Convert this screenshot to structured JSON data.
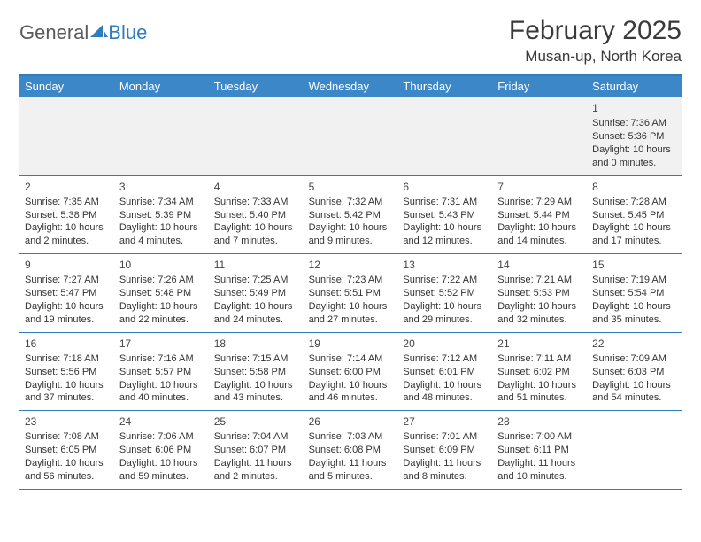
{
  "logo": {
    "text1": "General",
    "text2": "Blue"
  },
  "title": "February 2025",
  "location": "Musan-up, North Korea",
  "theme": {
    "header_bg": "#3b87c8",
    "header_text": "#ffffff",
    "border_color": "#2f7dc0",
    "first_row_bg": "#f1f1f1",
    "page_bg": "#ffffff",
    "text_color": "#333333",
    "title_fontsize": 30,
    "location_fontsize": 17,
    "dayheader_fontsize": 13,
    "cell_fontsize": 11
  },
  "daynames": [
    "Sunday",
    "Monday",
    "Tuesday",
    "Wednesday",
    "Thursday",
    "Friday",
    "Saturday"
  ],
  "weeks": [
    [
      null,
      null,
      null,
      null,
      null,
      null,
      {
        "n": "1",
        "sr": "Sunrise: 7:36 AM",
        "ss": "Sunset: 5:36 PM",
        "d1": "Daylight: 10 hours",
        "d2": "and 0 minutes."
      }
    ],
    [
      {
        "n": "2",
        "sr": "Sunrise: 7:35 AM",
        "ss": "Sunset: 5:38 PM",
        "d1": "Daylight: 10 hours",
        "d2": "and 2 minutes."
      },
      {
        "n": "3",
        "sr": "Sunrise: 7:34 AM",
        "ss": "Sunset: 5:39 PM",
        "d1": "Daylight: 10 hours",
        "d2": "and 4 minutes."
      },
      {
        "n": "4",
        "sr": "Sunrise: 7:33 AM",
        "ss": "Sunset: 5:40 PM",
        "d1": "Daylight: 10 hours",
        "d2": "and 7 minutes."
      },
      {
        "n": "5",
        "sr": "Sunrise: 7:32 AM",
        "ss": "Sunset: 5:42 PM",
        "d1": "Daylight: 10 hours",
        "d2": "and 9 minutes."
      },
      {
        "n": "6",
        "sr": "Sunrise: 7:31 AM",
        "ss": "Sunset: 5:43 PM",
        "d1": "Daylight: 10 hours",
        "d2": "and 12 minutes."
      },
      {
        "n": "7",
        "sr": "Sunrise: 7:29 AM",
        "ss": "Sunset: 5:44 PM",
        "d1": "Daylight: 10 hours",
        "d2": "and 14 minutes."
      },
      {
        "n": "8",
        "sr": "Sunrise: 7:28 AM",
        "ss": "Sunset: 5:45 PM",
        "d1": "Daylight: 10 hours",
        "d2": "and 17 minutes."
      }
    ],
    [
      {
        "n": "9",
        "sr": "Sunrise: 7:27 AM",
        "ss": "Sunset: 5:47 PM",
        "d1": "Daylight: 10 hours",
        "d2": "and 19 minutes."
      },
      {
        "n": "10",
        "sr": "Sunrise: 7:26 AM",
        "ss": "Sunset: 5:48 PM",
        "d1": "Daylight: 10 hours",
        "d2": "and 22 minutes."
      },
      {
        "n": "11",
        "sr": "Sunrise: 7:25 AM",
        "ss": "Sunset: 5:49 PM",
        "d1": "Daylight: 10 hours",
        "d2": "and 24 minutes."
      },
      {
        "n": "12",
        "sr": "Sunrise: 7:23 AM",
        "ss": "Sunset: 5:51 PM",
        "d1": "Daylight: 10 hours",
        "d2": "and 27 minutes."
      },
      {
        "n": "13",
        "sr": "Sunrise: 7:22 AM",
        "ss": "Sunset: 5:52 PM",
        "d1": "Daylight: 10 hours",
        "d2": "and 29 minutes."
      },
      {
        "n": "14",
        "sr": "Sunrise: 7:21 AM",
        "ss": "Sunset: 5:53 PM",
        "d1": "Daylight: 10 hours",
        "d2": "and 32 minutes."
      },
      {
        "n": "15",
        "sr": "Sunrise: 7:19 AM",
        "ss": "Sunset: 5:54 PM",
        "d1": "Daylight: 10 hours",
        "d2": "and 35 minutes."
      }
    ],
    [
      {
        "n": "16",
        "sr": "Sunrise: 7:18 AM",
        "ss": "Sunset: 5:56 PM",
        "d1": "Daylight: 10 hours",
        "d2": "and 37 minutes."
      },
      {
        "n": "17",
        "sr": "Sunrise: 7:16 AM",
        "ss": "Sunset: 5:57 PM",
        "d1": "Daylight: 10 hours",
        "d2": "and 40 minutes."
      },
      {
        "n": "18",
        "sr": "Sunrise: 7:15 AM",
        "ss": "Sunset: 5:58 PM",
        "d1": "Daylight: 10 hours",
        "d2": "and 43 minutes."
      },
      {
        "n": "19",
        "sr": "Sunrise: 7:14 AM",
        "ss": "Sunset: 6:00 PM",
        "d1": "Daylight: 10 hours",
        "d2": "and 46 minutes."
      },
      {
        "n": "20",
        "sr": "Sunrise: 7:12 AM",
        "ss": "Sunset: 6:01 PM",
        "d1": "Daylight: 10 hours",
        "d2": "and 48 minutes."
      },
      {
        "n": "21",
        "sr": "Sunrise: 7:11 AM",
        "ss": "Sunset: 6:02 PM",
        "d1": "Daylight: 10 hours",
        "d2": "and 51 minutes."
      },
      {
        "n": "22",
        "sr": "Sunrise: 7:09 AM",
        "ss": "Sunset: 6:03 PM",
        "d1": "Daylight: 10 hours",
        "d2": "and 54 minutes."
      }
    ],
    [
      {
        "n": "23",
        "sr": "Sunrise: 7:08 AM",
        "ss": "Sunset: 6:05 PM",
        "d1": "Daylight: 10 hours",
        "d2": "and 56 minutes."
      },
      {
        "n": "24",
        "sr": "Sunrise: 7:06 AM",
        "ss": "Sunset: 6:06 PM",
        "d1": "Daylight: 10 hours",
        "d2": "and 59 minutes."
      },
      {
        "n": "25",
        "sr": "Sunrise: 7:04 AM",
        "ss": "Sunset: 6:07 PM",
        "d1": "Daylight: 11 hours",
        "d2": "and 2 minutes."
      },
      {
        "n": "26",
        "sr": "Sunrise: 7:03 AM",
        "ss": "Sunset: 6:08 PM",
        "d1": "Daylight: 11 hours",
        "d2": "and 5 minutes."
      },
      {
        "n": "27",
        "sr": "Sunrise: 7:01 AM",
        "ss": "Sunset: 6:09 PM",
        "d1": "Daylight: 11 hours",
        "d2": "and 8 minutes."
      },
      {
        "n": "28",
        "sr": "Sunrise: 7:00 AM",
        "ss": "Sunset: 6:11 PM",
        "d1": "Daylight: 11 hours",
        "d2": "and 10 minutes."
      },
      null
    ]
  ]
}
